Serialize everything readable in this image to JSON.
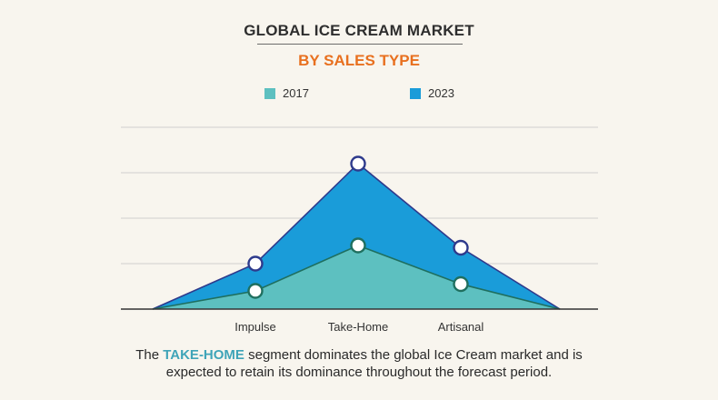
{
  "chart_data": {
    "type": "area",
    "title": "GLOBAL ICE CREAM MARKET",
    "subtitle": "BY SALES TYPE",
    "categories": [
      "Impulse",
      "Take-Home",
      "Artisanal"
    ],
    "series": [
      {
        "name": "2023",
        "values": [
          1.0,
          3.2,
          1.35
        ],
        "color": "#1a9cd9"
      },
      {
        "name": "2017",
        "values": [
          0.4,
          1.4,
          0.55
        ],
        "color": "#5dc0c0"
      }
    ],
    "xlabel": "",
    "ylabel": "",
    "ylim": [
      0,
      4
    ],
    "grid": true,
    "legend": "top-center"
  },
  "legend": {
    "item_2017": "2017",
    "item_2023": "2023",
    "color_2017": "#5dc0c0",
    "color_2023": "#1a9cd9"
  },
  "caption": {
    "prefix": "The ",
    "highlight": "TAKE-HOME",
    "line1_rest": " segment dominates the global Ice Cream market and is",
    "line2": "expected to retain its dominance throughout the forecast period."
  }
}
